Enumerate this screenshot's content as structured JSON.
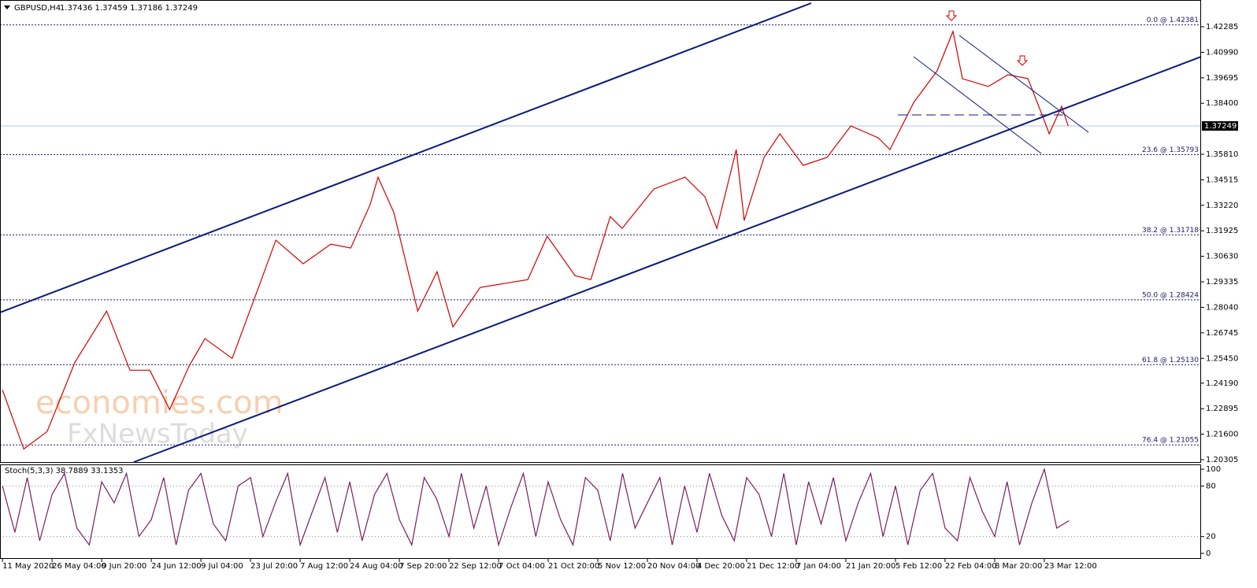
{
  "chart_data": [
    {
      "type": "line",
      "title": "GBPUSD,H4",
      "subtitle": "1.37436 1.37459 1.37186 1.37249",
      "color": "#d40000",
      "x": [
        0,
        0.43,
        0.9,
        1.46,
        2.1,
        2.57,
        2.97,
        3.37,
        3.76,
        4.08,
        4.63,
        5.19,
        5.51,
        6.06,
        6.62,
        7.02,
        7.41,
        7.57,
        7.89,
        8.37,
        8.76,
        9.08,
        9.63,
        10.11,
        10.59,
        10.98,
        11.54,
        11.86,
        12.25,
        12.49,
        13.13,
        13.76,
        14.16,
        14.4,
        14.79,
        14.95,
        15.35,
        15.67,
        16.14,
        16.62,
        17.1,
        17.65,
        17.89,
        18.37,
        18.84,
        19.16,
        19.35,
        19.87,
        20.27,
        20.67,
        20.98,
        21.1,
        21.35,
        21.48
      ],
      "values": [
        1.2385,
        1.2085,
        1.2173,
        1.2525,
        1.2785,
        1.2485,
        1.2485,
        1.2285,
        1.2505,
        1.2645,
        1.2545,
        1.2925,
        1.3145,
        1.3025,
        1.3125,
        1.3105,
        1.3325,
        1.3465,
        1.3285,
        1.2785,
        1.2985,
        1.2705,
        1.2905,
        1.2925,
        1.2945,
        1.3165,
        1.2965,
        1.2945,
        1.3265,
        1.3205,
        1.3405,
        1.3465,
        1.3365,
        1.3205,
        1.3605,
        1.3245,
        1.3565,
        1.3685,
        1.3525,
        1.3565,
        1.3725,
        1.3665,
        1.3605,
        1.3845,
        1.4005,
        1.4205,
        1.3965,
        1.3925,
        1.3985,
        1.3965,
        1.3765,
        1.3685,
        1.3825,
        1.37249
      ],
      "xlim": [
        -0.05,
        24.16
      ],
      "ylim": [
        1.20145,
        1.43644
      ],
      "yticks": [
        1.42285,
        {
          "value": 1.4099,
          "label": "1.40990"
        },
        1.39695,
        {
          "value": 1.384,
          "label": "1.38400"
        },
        {
          "value": 1.3581,
          "label": "1.35810"
        },
        1.34515,
        {
          "value": 1.3322,
          "label": "1.33220"
        },
        1.31925,
        {
          "value": 1.3063,
          "label": "1.30630"
        },
        1.29335,
        {
          "value": 1.2804,
          "label": "1.28040"
        },
        1.26745,
        {
          "value": 1.2545,
          "label": "1.25450"
        },
        {
          "value": 1.2419,
          "label": "1.24190"
        },
        1.22895,
        {
          "value": 1.216,
          "label": "1.21600"
        },
        1.20305
      ],
      "levels": [
        {
          "value": 1.42381,
          "label": "0.0 @ 1.42381"
        },
        {
          "value": 1.35793,
          "label": "23.6 @ 1.35793"
        },
        {
          "value": 1.31718,
          "label": "38.2 @ 1.31718"
        },
        {
          "value": 1.28424,
          "label": "50.0 @ 1.28424"
        },
        {
          "value": 1.2513,
          "label": "61.8 @ 1.25130"
        },
        {
          "value": 1.21055,
          "label": "76.4 @ 1.21055"
        }
      ],
      "last_price": 1.37249,
      "watermark": [
        "economies.com",
        "FxNewsToday"
      ]
    },
    {
      "type": "line",
      "title": "Stoch(5,3,3) 38.7889 33.1353",
      "color": "#7a1f5c",
      "x": [
        0,
        0.25,
        0.5,
        0.75,
        1,
        1.25,
        1.5,
        1.75,
        2,
        2.25,
        2.5,
        2.75,
        3,
        3.25,
        3.5,
        3.75,
        4,
        4.25,
        4.5,
        4.75,
        5,
        5.25,
        5.5,
        5.75,
        6,
        6.25,
        6.5,
        6.75,
        7,
        7.25,
        7.5,
        7.75,
        8,
        8.25,
        8.5,
        8.75,
        9,
        9.25,
        9.5,
        9.75,
        10,
        10.25,
        10.5,
        10.75,
        11,
        11.25,
        11.5,
        11.75,
        12,
        12.25,
        12.5,
        12.75,
        13,
        13.25,
        13.5,
        13.75,
        14,
        14.25,
        14.5,
        14.75,
        15,
        15.25,
        15.5,
        15.75,
        16,
        16.25,
        16.5,
        16.75,
        17,
        17.25,
        17.5,
        17.75,
        18,
        18.25,
        18.5,
        18.75,
        19,
        19.25,
        19.5,
        19.75,
        20,
        20.25,
        20.5,
        20.75,
        21,
        21.25,
        21.5
      ],
      "values": [
        80,
        25,
        90,
        15,
        70,
        95,
        30,
        10,
        85,
        60,
        95,
        20,
        40,
        90,
        10,
        75,
        95,
        35,
        15,
        80,
        90,
        20,
        60,
        95,
        10,
        50,
        90,
        25,
        85,
        15,
        70,
        95,
        40,
        10,
        90,
        65,
        20,
        95,
        30,
        80,
        10,
        55,
        95,
        20,
        85,
        40,
        10,
        90,
        75,
        15,
        95,
        30,
        60,
        90,
        10,
        80,
        25,
        95,
        45,
        15,
        90,
        70,
        20,
        95,
        10,
        85,
        35,
        90,
        15,
        60,
        95,
        20,
        80,
        10,
        75,
        95,
        30,
        15,
        90,
        50,
        20,
        85,
        10,
        60,
        100,
        30,
        38.79
      ],
      "xlim": [
        -0.05,
        24.16
      ],
      "ylim": [
        -6.5,
        104.7
      ],
      "yticks": [
        100,
        80,
        20,
        0
      ],
      "levels": [
        80,
        20
      ],
      "xticks": [
        {
          "value": 0,
          "label": "11 May 2020"
        },
        {
          "value": 1,
          "label": "26 May 04:00"
        },
        {
          "value": 2,
          "label": "9 Jun 20:00"
        },
        {
          "value": 3,
          "label": "24 Jun 12:00"
        },
        {
          "value": 4,
          "label": "9 Jul 04:00"
        },
        {
          "value": 5,
          "label": "23 Jul 20:00"
        },
        {
          "value": 6,
          "label": "7 Aug 12:00"
        },
        {
          "value": 7,
          "label": "24 Aug 04:00"
        },
        {
          "value": 8,
          "label": "7 Sep 20:00"
        },
        {
          "value": 9,
          "label": "22 Sep 12:00"
        },
        {
          "value": 10,
          "label": "7 Oct 04:00"
        },
        {
          "value": 11,
          "label": "21 Oct 20:00"
        },
        {
          "value": 12,
          "label": "5 Nov 12:00"
        },
        {
          "value": 13,
          "label": "20 Nov 04:00"
        },
        {
          "value": 14,
          "label": "4 Dec 20:00"
        },
        {
          "value": 15,
          "label": "21 Dec 12:00"
        },
        {
          "value": 16,
          "label": "7 Jan 04:00"
        },
        {
          "value": 17,
          "label": "21 Jan 20:00"
        },
        {
          "value": 18,
          "label": "5 Feb 12:00"
        },
        {
          "value": 19,
          "label": "22 Feb 04:00"
        },
        {
          "value": 20,
          "label": "8 Mar 20:00"
        },
        {
          "value": 21,
          "label": "23 Mar 12:00"
        }
      ]
    }
  ]
}
